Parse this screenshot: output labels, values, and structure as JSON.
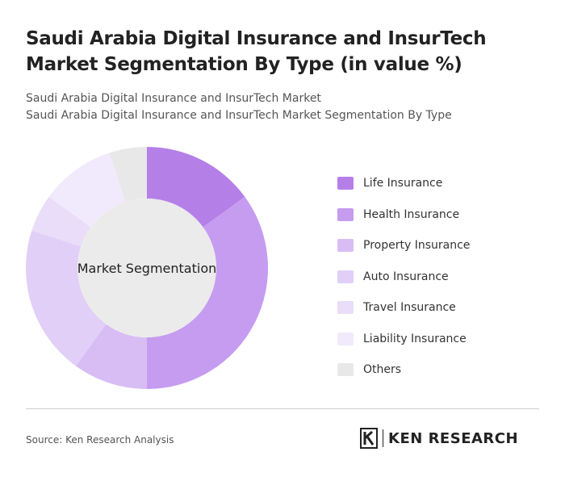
{
  "chart_data": {
    "type": "donut",
    "title": "Saudi Arabia Digital Insurance and InsurTech Market Segmentation By Type (in value %)",
    "subtitle": [
      "Saudi Arabia Digital Insurance and InsurTech Market",
      "Saudi Arabia Digital Insurance and InsurTech Market Segmentation By Type"
    ],
    "center_label": "Market Segmentation",
    "categories": [
      "Life Insurance",
      "Health Insurance",
      "Property Insurance",
      "Auto Insurance",
      "Travel Insurance",
      "Liability Insurance",
      "Others"
    ],
    "values": [
      15,
      35,
      10,
      20,
      5,
      10,
      5
    ],
    "colors": [
      "#b57fe8",
      "#c59cf0",
      "#d8bdf5",
      "#e1cff7",
      "#e9ddf9",
      "#f1e9fc",
      "#e8e8e8"
    ],
    "source": "Source: Ken Research Analysis",
    "brand": "KEN RESEARCH"
  }
}
